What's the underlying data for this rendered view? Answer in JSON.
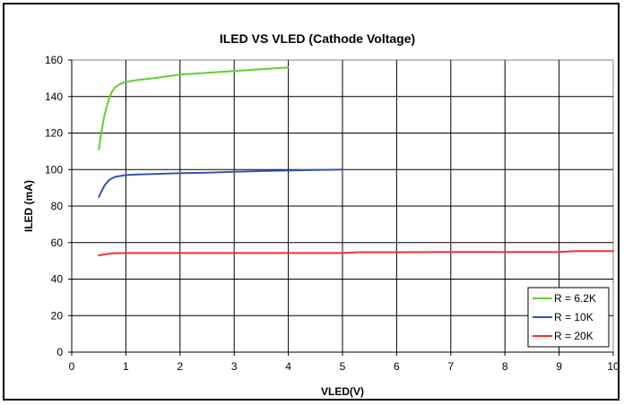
{
  "chart_data": {
    "type": "line",
    "title": "ILED VS VLED (Cathode Voltage)",
    "xlabel": "VLED(V)",
    "ylabel": "ILED (mA)",
    "xlim": [
      0,
      10
    ],
    "ylim": [
      0,
      160
    ],
    "x_ticks": [
      "0",
      "1",
      "2",
      "3",
      "4",
      "5",
      "6",
      "7",
      "8",
      "9",
      "10"
    ],
    "y_ticks": [
      "0",
      "20",
      "40",
      "60",
      "80",
      "100",
      "120",
      "140",
      "160"
    ],
    "grid": true,
    "legend_position": "bottom-right",
    "series": [
      {
        "name": "R = 6.2K",
        "color": "#66cc33",
        "x": [
          0.5,
          0.55,
          0.6,
          0.65,
          0.7,
          0.75,
          0.8,
          0.9,
          1.0,
          1.2,
          1.5,
          2.0,
          2.5,
          3.0,
          3.5,
          4.0
        ],
        "y": [
          111,
          121,
          129,
          135,
          140,
          143,
          145,
          147,
          148,
          149,
          150,
          152,
          153,
          154,
          155,
          156
        ]
      },
      {
        "name": "R = 10K",
        "color": "#3355aa",
        "x": [
          0.5,
          0.55,
          0.6,
          0.65,
          0.7,
          0.8,
          0.9,
          1.0,
          1.2,
          1.5,
          2.0,
          2.5,
          3.0,
          3.5,
          4.0,
          4.5,
          5.0
        ],
        "y": [
          85,
          88,
          91,
          93,
          94.5,
          96,
          96.5,
          97,
          97.3,
          97.5,
          98,
          98.3,
          98.8,
          99.2,
          99.5,
          99.8,
          100
        ]
      },
      {
        "name": "R = 20K",
        "color": "#ee3333",
        "x": [
          0.5,
          0.6,
          0.7,
          0.8,
          1.0,
          2.0,
          3.0,
          4.0,
          5.0,
          5.3,
          6.0,
          7.0,
          8.0,
          9.0,
          9.3,
          10.0
        ],
        "y": [
          53,
          53.5,
          54,
          54.2,
          54.3,
          54.3,
          54.3,
          54.3,
          54.3,
          54.7,
          54.7,
          54.8,
          54.8,
          54.8,
          55.3,
          55.3
        ]
      }
    ]
  }
}
